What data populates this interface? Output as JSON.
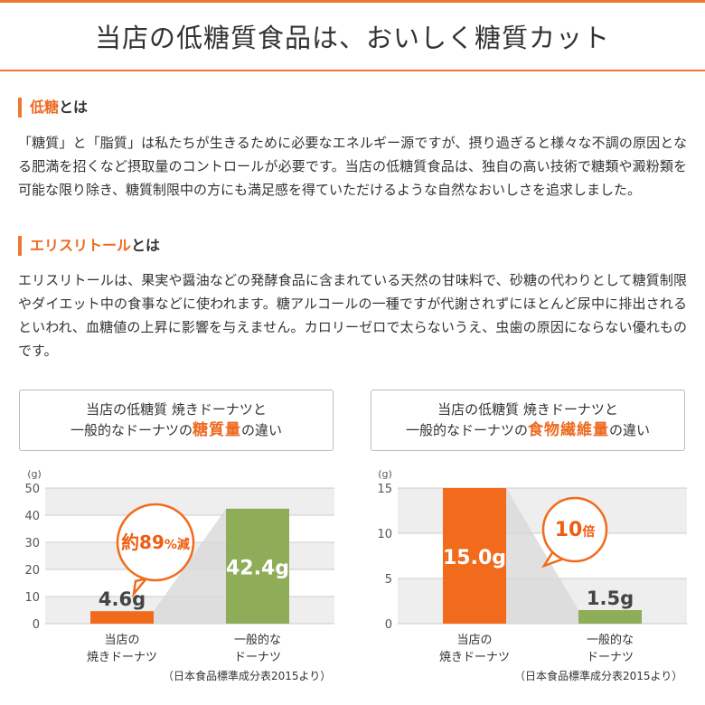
{
  "header": {
    "title": "当店の低糖質食品は、おいしく糖質カット"
  },
  "sections": [
    {
      "title_hl": "低糖",
      "title_rest": "とは",
      "text": "「糖質」と「脂質」は私たちが生きるために必要なエネルギー源ですが、摂り過ぎると様々な不調の原因となる肥満を招くなど摂取量のコントロールが必要です。当店の低糖質食品は、独自の高い技術で糖類や澱粉類を可能な限り除き、糖質制限中の方にも満足感を得ていただけるような自然なおいしさを追求しました。"
    },
    {
      "title_hl": "エリスリトール",
      "title_rest": "とは",
      "text": "エリスリトールは、果実や醤油などの発酵食品に含まれている天然の甘味料で、砂糖の代わりとして糖質制限やダイエット中の食事などに使われます。糖アルコールの一種ですが代謝されずにほとんど尿中に排出されるといわれ、血糖値の上昇に影響を与えません。カロリーゼロで太らないうえ、虫歯の原因にならない優れものです。"
    }
  ],
  "colors": {
    "accent": "#ee7732",
    "orange_bar": "#f26a1b",
    "green_bar": "#8fad58",
    "band": "#eeeeee"
  },
  "chart_data": [
    {
      "type": "bar",
      "title_line1": "当店の低糖質 焼きドーナツと",
      "title_line2_pre": "一般的なドーナツの",
      "title_line2_em": "糖質量",
      "title_line2_post": "の違い",
      "unit": "(g)",
      "ylim": [
        0,
        50
      ],
      "yticks": [
        0,
        10,
        20,
        30,
        40,
        50
      ],
      "categories": [
        [
          "当店の",
          "焼きドーナツ"
        ],
        [
          "一般的な",
          "ドーナツ"
        ]
      ],
      "values": [
        4.6,
        42.4
      ],
      "value_labels": [
        "4.6g",
        "42.4g"
      ],
      "callout_main": "約89",
      "callout_sub": "%減",
      "source": "（日本食品標準成分表2015より）"
    },
    {
      "type": "bar",
      "title_line1": "当店の低糖質 焼きドーナツと",
      "title_line2_pre": "一般的なドーナツの",
      "title_line2_em": "食物繊維量",
      "title_line2_post": "の違い",
      "unit": "(g)",
      "ylim": [
        0,
        15
      ],
      "yticks": [
        0,
        5,
        10,
        15
      ],
      "categories": [
        [
          "当店の",
          "焼きドーナツ"
        ],
        [
          "一般的な",
          "ドーナツ"
        ]
      ],
      "values": [
        15.0,
        1.5
      ],
      "value_labels": [
        "15.0g",
        "1.5g"
      ],
      "callout_main": "10",
      "callout_sub": "倍",
      "source": "（日本食品標準成分表2015より）"
    }
  ]
}
